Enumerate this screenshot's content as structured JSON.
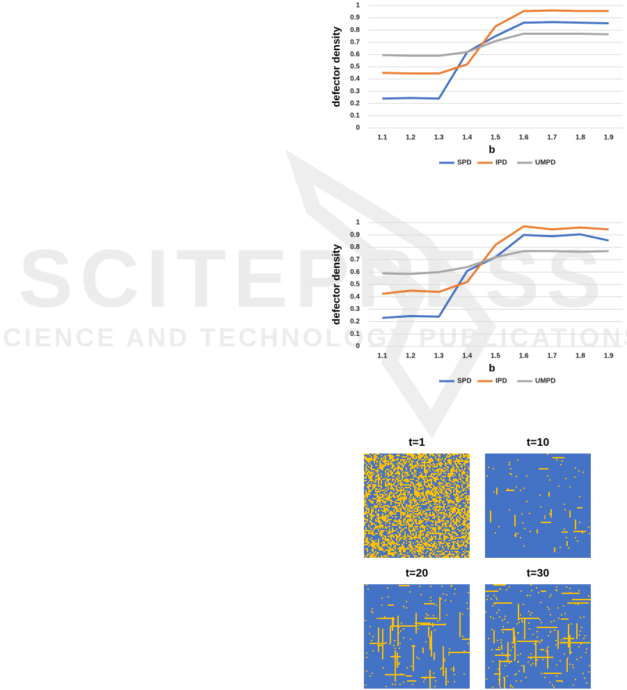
{
  "watermark": {
    "logo": "SCITEPRESS",
    "tagline": "SCIENCE AND TECHNOLOGY PUBLICATIONS"
  },
  "chart_data": [
    {
      "type": "line",
      "xlabel": "b",
      "ylabel": "defector density",
      "categories": [
        "1.1",
        "1.2",
        "1.3",
        "1.4",
        "1.5",
        "1.6",
        "1.7",
        "1.8",
        "1.9"
      ],
      "series": [
        {
          "name": "SPD",
          "color": "#4472c4",
          "values": [
            0.24,
            0.245,
            0.24,
            0.62,
            0.75,
            0.86,
            0.865,
            0.86,
            0.855
          ]
        },
        {
          "name": "IPD",
          "color": "#ed7d31",
          "values": [
            0.45,
            0.445,
            0.445,
            0.52,
            0.83,
            0.955,
            0.96,
            0.955,
            0.955
          ]
        },
        {
          "name": "UMPD",
          "color": "#a5a5a5",
          "values": [
            0.595,
            0.59,
            0.59,
            0.62,
            0.71,
            0.77,
            0.77,
            0.77,
            0.765
          ]
        }
      ],
      "ylim": [
        0,
        1
      ],
      "yticks": [
        0,
        0.1,
        0.2,
        0.3,
        0.4,
        0.5,
        0.6,
        0.7,
        0.8,
        0.9,
        1
      ],
      "grid": true,
      "legend": "bottom"
    },
    {
      "type": "line",
      "xlabel": "b",
      "ylabel": "defector density",
      "categories": [
        "1.1",
        "1.2",
        "1.3",
        "1.4",
        "1.5",
        "1.6",
        "1.7",
        "1.8",
        "1.9"
      ],
      "series": [
        {
          "name": "SPD",
          "color": "#4472c4",
          "values": [
            0.23,
            0.245,
            0.24,
            0.61,
            0.72,
            0.9,
            0.89,
            0.905,
            0.855
          ]
        },
        {
          "name": "IPD",
          "color": "#ed7d31",
          "values": [
            0.425,
            0.45,
            0.44,
            0.52,
            0.82,
            0.97,
            0.945,
            0.96,
            0.945
          ]
        },
        {
          "name": "UMPD",
          "color": "#a5a5a5",
          "values": [
            0.59,
            0.585,
            0.6,
            0.64,
            0.72,
            0.77,
            0.77,
            0.765,
            0.77
          ]
        }
      ],
      "ylim": [
        0,
        1
      ],
      "yticks": [
        0,
        0.1,
        0.2,
        0.3,
        0.4,
        0.5,
        0.6,
        0.7,
        0.8,
        0.9,
        1
      ],
      "grid": true,
      "legend": "bottom"
    }
  ],
  "figures": [
    {
      "title": "t=1"
    },
    {
      "title": "t=10"
    },
    {
      "title": "t=20"
    },
    {
      "title": "t=30"
    }
  ]
}
